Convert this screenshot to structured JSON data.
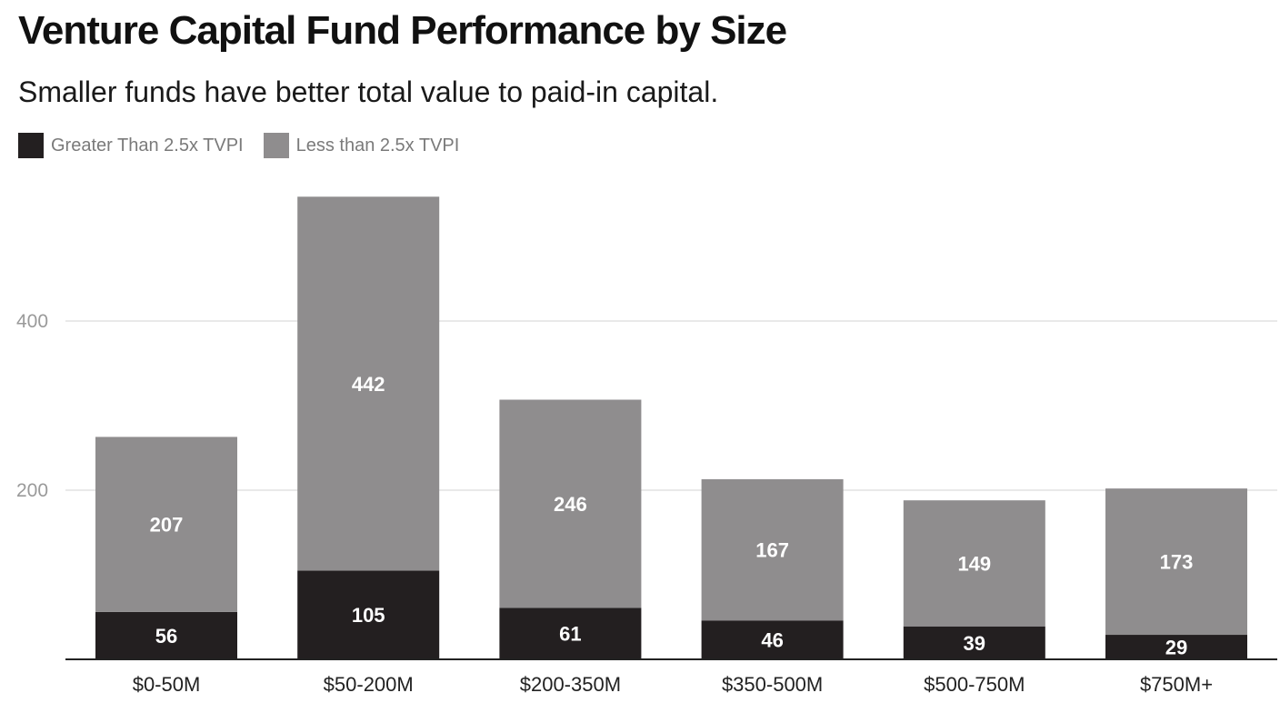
{
  "chart_data": {
    "type": "bar",
    "stacked": true,
    "title": "Venture Capital Fund Performance by Size",
    "subtitle": "Smaller funds have better total value to paid-in capital.",
    "xlabel": "",
    "ylabel": "",
    "categories": [
      "$0-50M",
      "$50-200M",
      "$200-350M",
      "$350-500M",
      "$500-750M",
      "$750M+"
    ],
    "series": [
      {
        "name": "Greater Than 2.5x TVPI",
        "color": "#231f20",
        "values": [
          56,
          105,
          61,
          46,
          39,
          29
        ]
      },
      {
        "name": "Less than 2.5x TVPI",
        "color": "#8f8d8e",
        "values": [
          207,
          442,
          246,
          167,
          149,
          173
        ]
      }
    ],
    "ylim": [
      0,
      600
    ],
    "yticks": [
      200,
      400
    ],
    "grid": true,
    "legend_position": "top-left"
  }
}
